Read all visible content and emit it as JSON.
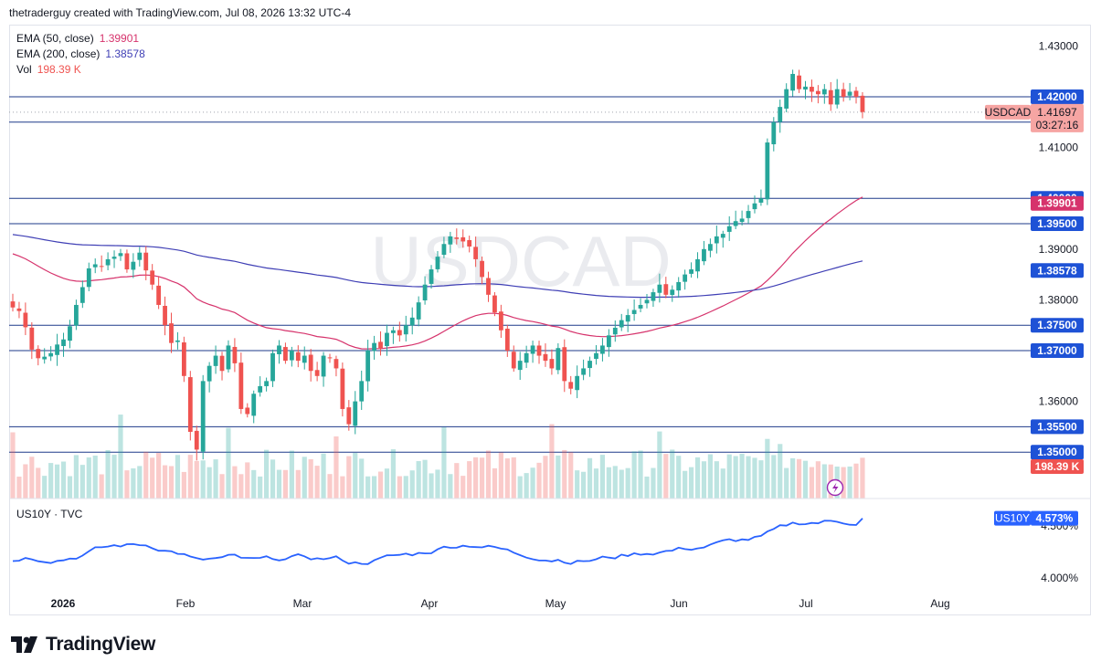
{
  "header": {
    "attribution": "thetraderguy created with TradingView.com, Jul 08, 2026 13:32 UTC-4"
  },
  "watermark": "USDCAD",
  "legend": {
    "ema50": {
      "label": "EMA (50, close)",
      "value": "1.39901",
      "color": "#d6336c"
    },
    "ema200": {
      "label": "EMA (200, close)",
      "value": "1.38578",
      "color": "#3f3fb5"
    },
    "volume": {
      "label": "Vol",
      "value": "198.39 K",
      "color": "#ef5350"
    }
  },
  "price_labels": {
    "symbol": "USDCAD",
    "last": "1.41697",
    "countdown": "03:27:16",
    "ema50": "1.39901",
    "ema200": "1.38578",
    "volume": "198.39 K"
  },
  "sub_pane": {
    "label": "US10Y · TVC",
    "symbol": "US10Y",
    "last": "4.573%",
    "ticks": [
      "4.500%",
      "4.000%"
    ]
  },
  "branding": {
    "name": "TradingView"
  },
  "colors": {
    "up": "#26a69a",
    "down": "#ef5350",
    "level": "#1e3a8a",
    "tag": "#1e52d6",
    "us10y": "#2962ff"
  },
  "chart_data": {
    "type": "candlestick",
    "symbol": "USDCAD",
    "x_ticks": [
      "2026",
      "Feb",
      "Mar",
      "Apr",
      "May",
      "Jun",
      "Jul",
      "Aug"
    ],
    "y_ticks": [
      "1.43000",
      "1.41000",
      "1.39000",
      "1.38000",
      "1.36000"
    ],
    "ylim": [
      1.3465,
      1.4325
    ],
    "horizontal_levels": [
      "1.42000",
      "1.41500",
      "1.40000",
      "1.39500",
      "1.37500",
      "1.37000",
      "1.35500",
      "1.35000"
    ],
    "series": [
      {
        "name": "USDCAD",
        "type": "candlestick",
        "comment": "daily closes, approximate",
        "closes": [
          1.3785,
          1.3778,
          1.3746,
          1.3702,
          1.3685,
          1.3688,
          1.3695,
          1.3712,
          1.3722,
          1.3748,
          1.379,
          1.3825,
          1.3862,
          1.387,
          1.3865,
          1.388,
          1.3885,
          1.3892,
          1.386,
          1.3875,
          1.3893,
          1.3858,
          1.383,
          1.379,
          1.375,
          1.3715,
          1.372,
          1.365,
          1.354,
          1.3505,
          1.364,
          1.367,
          1.369,
          1.366,
          1.371,
          1.3675,
          1.3585,
          1.3575,
          1.3615,
          1.363,
          1.364,
          1.3695,
          1.371,
          1.368,
          1.37,
          1.368,
          1.369,
          1.366,
          1.365,
          1.369,
          1.3685,
          1.3665,
          1.3585,
          1.3555,
          1.36,
          1.364,
          1.37,
          1.3715,
          1.3705,
          1.3735,
          1.374,
          1.373,
          1.375,
          1.3765,
          1.3795,
          1.383,
          1.386,
          1.3885,
          1.391,
          1.3925,
          1.392,
          1.3915,
          1.3905,
          1.388,
          1.3845,
          1.381,
          1.3775,
          1.374,
          1.37,
          1.3665,
          1.368,
          1.3695,
          1.371,
          1.369,
          1.368,
          1.3665,
          1.3705,
          1.364,
          1.3625,
          1.365,
          1.3665,
          1.368,
          1.3695,
          1.371,
          1.373,
          1.3745,
          1.376,
          1.377,
          1.378,
          1.379,
          1.38,
          1.3815,
          1.383,
          1.381,
          1.382,
          1.3835,
          1.385,
          1.386,
          1.388,
          1.39,
          1.391,
          1.3925,
          1.393,
          1.3945,
          1.3955,
          1.396,
          1.3975,
          1.399,
          1.4,
          1.411,
          1.415,
          1.418,
          1.4215,
          1.4245,
          1.4215,
          1.422,
          1.421,
          1.4205,
          1.4215,
          1.4185,
          1.4215,
          1.42,
          1.421,
          1.42,
          1.417
        ]
      },
      {
        "name": "EMA (50, close)",
        "type": "line",
        "last": 1.39901
      },
      {
        "name": "EMA (200, close)",
        "type": "line",
        "last": 1.38578
      },
      {
        "name": "Vol",
        "type": "bar",
        "last": "198.39 K"
      },
      {
        "name": "US10Y",
        "type": "line",
        "unit": "%",
        "last": 4.573
      }
    ]
  }
}
